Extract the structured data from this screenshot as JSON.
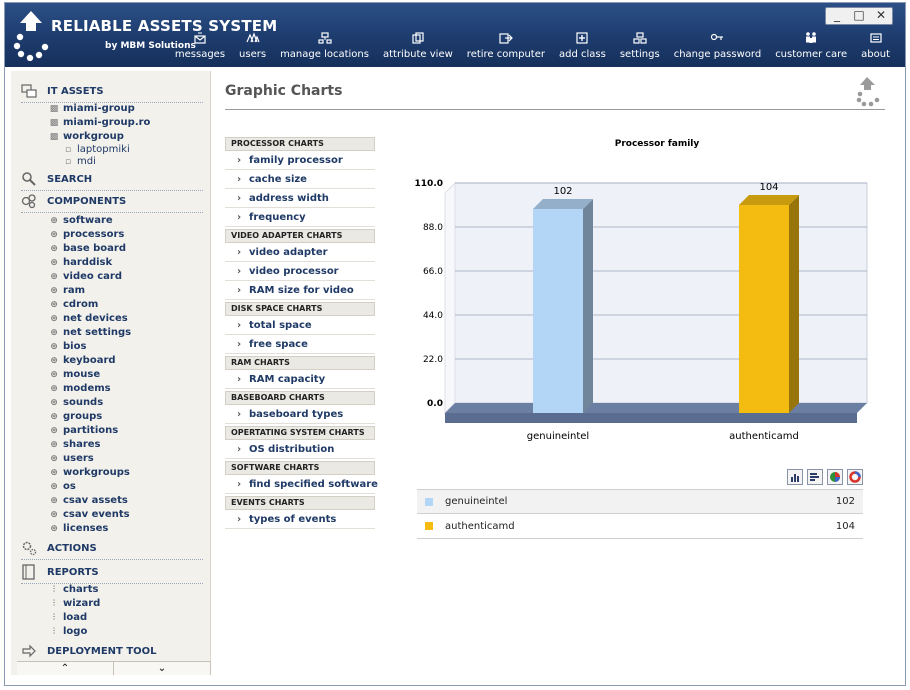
{
  "app": {
    "title": "RELIABLE ASSETS SYSTEM",
    "subtitle": "by MBM Solutions",
    "window_controls": [
      "_",
      "□",
      "✕"
    ]
  },
  "nav": [
    {
      "label": "messages",
      "icon": "messages-icon"
    },
    {
      "label": "users",
      "icon": "users-icon"
    },
    {
      "label": "manage locations",
      "icon": "locations-icon"
    },
    {
      "label": "attribute view",
      "icon": "attribute-icon"
    },
    {
      "label": "retire computer",
      "icon": "retire-icon"
    },
    {
      "label": "add class",
      "icon": "add-class-icon"
    },
    {
      "label": "settings",
      "icon": "settings-icon"
    },
    {
      "label": "change password",
      "icon": "key-icon"
    },
    {
      "label": "customer care",
      "icon": "customer-care-icon"
    },
    {
      "label": "about",
      "icon": "about-icon"
    }
  ],
  "sidebar": {
    "sections": {
      "it_assets": "IT ASSETS",
      "search": "SEARCH",
      "components": "COMPONENTS",
      "actions": "ACTIONS",
      "reports": "REPORTS",
      "deployment": "DEPLOYMENT TOOL"
    },
    "assets": [
      "miami-group",
      "miami-group.ro",
      "workgroup"
    ],
    "workgroup_children": [
      "laptopmiki",
      "mdi"
    ],
    "components": [
      "software",
      "processors",
      "base board",
      "harddisk",
      "video card",
      "ram",
      "cdrom",
      "net devices",
      "net settings",
      "bios",
      "keyboard",
      "mouse",
      "modems",
      "sounds",
      "groups",
      "partitions",
      "shares",
      "users",
      "workgroups",
      "os",
      "csav assets",
      "csav events",
      "licenses"
    ],
    "reports": [
      "charts",
      "wizard",
      "load",
      "logo"
    ],
    "scroll": {
      "up": "⌃",
      "down": "⌄"
    }
  },
  "page": {
    "title": "Graphic Charts"
  },
  "chart_menu": [
    {
      "head": "PROCESSOR CHARTS",
      "items": [
        "family processor",
        "cache size",
        "address width",
        "frequency"
      ]
    },
    {
      "head": "VIDEO ADAPTER CHARTS",
      "items": [
        "video adapter",
        "video processor",
        "RAM size for video"
      ]
    },
    {
      "head": "DISK SPACE CHARTS",
      "items": [
        "total space",
        "free space"
      ]
    },
    {
      "head": "RAM CHARTS",
      "items": [
        "RAM capacity"
      ]
    },
    {
      "head": "BASEBOARD CHARTS",
      "items": [
        "baseboard types"
      ]
    },
    {
      "head": "OPERTATING SYSTEM CHARTS",
      "items": [
        "OS distribution"
      ]
    },
    {
      "head": "SOFTWARE CHARTS",
      "items": [
        "find specified software"
      ]
    },
    {
      "head": "EVENTS CHARTS",
      "items": [
        "types of events"
      ]
    }
  ],
  "chart_data": {
    "type": "bar",
    "title": "Processor family",
    "categories": [
      "genuineintel",
      "authenticamd"
    ],
    "values": [
      102,
      104
    ],
    "colors": [
      "#b4d6f6",
      "#f4bc10"
    ],
    "ylim": [
      0,
      110
    ],
    "yticks": [
      "0.0",
      "22.0",
      "44.0",
      "66.0",
      "88.0",
      "110.0"
    ],
    "grid": true,
    "xlabel": "",
    "ylabel": ""
  },
  "legend": [
    {
      "name": "genuineintel",
      "value": "102",
      "color": "#b4d6f6"
    },
    {
      "name": "authenticamd",
      "value": "104",
      "color": "#f4bc10"
    }
  ],
  "chart_tools": [
    "bar-chart-icon",
    "horizontal-bar-icon",
    "pie-chart-icon",
    "donut-chart-icon"
  ]
}
